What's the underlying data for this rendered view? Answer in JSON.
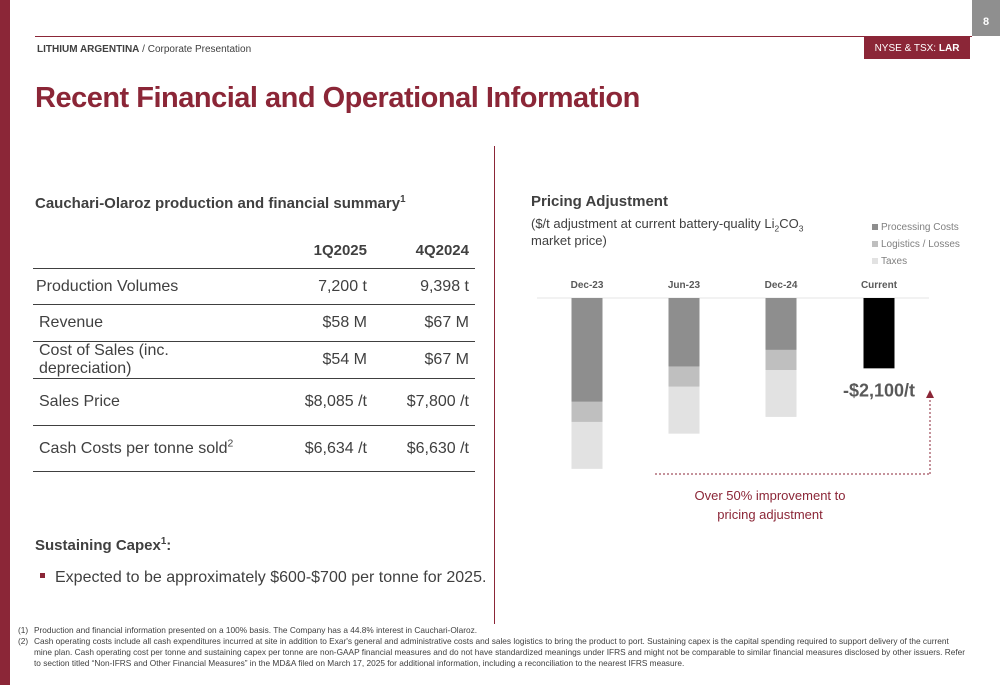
{
  "page_number": "8",
  "header": {
    "company": "LITHIUM ARGENTINA",
    "separator": " / ",
    "section": "Corporate Presentation",
    "ticker_prefix": "NYSE & TSX: ",
    "ticker": "LAR"
  },
  "title": "Recent Financial and Operational Information",
  "summary": {
    "title": "Cauchari-Olaroz production and financial summary",
    "title_sup": "1",
    "columns": [
      "1Q2025",
      "4Q2024"
    ],
    "rows": [
      {
        "label": "Production Volumes",
        "sup": "",
        "values": [
          "7,200 t",
          "9,398 t"
        ]
      },
      {
        "label": "Revenue",
        "sup": "",
        "values": [
          "$58 M",
          "$67 M"
        ]
      },
      {
        "label": "Cost of Sales (inc. depreciation)",
        "sup": "",
        "values": [
          "$54 M",
          "$67 M"
        ]
      },
      {
        "label": "Sales Price",
        "sup": "",
        "values": [
          "$8,085 /t",
          "$7,800 /t"
        ]
      },
      {
        "label": "Cash Costs per tonne sold",
        "sup": "2",
        "values": [
          "$6,634 /t",
          "$6,630 /t"
        ]
      }
    ]
  },
  "capex": {
    "heading": "Sustaining Capex",
    "heading_sup": "1",
    "heading_suffix": ":",
    "bullet": "Expected to be approximately $600-$700 per tonne for 2025."
  },
  "chart": {
    "title": "Pricing Adjustment",
    "subtitle_pre": "($/t adjustment at current battery-quality Li",
    "subtitle_sub1": "2",
    "subtitle_mid": "CO",
    "subtitle_sub2": "3",
    "subtitle_post": " market price)",
    "current_label": "-$2,100/t",
    "annotation": "Over 50% improvement to pricing adjustment",
    "colors": {
      "processing": "#8e8e8e",
      "logistics": "#bfbfbf",
      "taxes": "#e2e2e2",
      "current": "#000000",
      "accent": "#8B2637"
    }
  },
  "chart_data": {
    "type": "bar",
    "stacked": true,
    "orientation": "downward",
    "categories": [
      "Dec-23",
      "Jun-23",
      "Dec-24",
      "Current"
    ],
    "series": [
      {
        "name": "Processing Costs",
        "values": [
          3100,
          2050,
          1550,
          0
        ]
      },
      {
        "name": "Logistics / Losses",
        "values": [
          600,
          600,
          600,
          0
        ]
      },
      {
        "name": "Taxes",
        "values": [
          1400,
          1400,
          1400,
          0
        ]
      },
      {
        "name": "Current",
        "values": [
          0,
          0,
          0,
          2100
        ]
      }
    ],
    "data_labels": [
      {
        "category": "Current",
        "text": "-$2,100/t"
      }
    ],
    "legend": "top-right",
    "grid": false
  },
  "footnotes": [
    {
      "n": "(1)",
      "text": "Production and financial information presented on a 100% basis. The Company has a 44.8% interest in Cauchari-Olaroz."
    },
    {
      "n": "(2)",
      "text": "Cash operating costs include all cash expenditures incurred at site in addition to Exar's general and administrative costs and sales logistics to bring the product to port. Sustaining capex is the capital spending required to support delivery of the current mine plan. Cash operating cost per tonne and sustaining capex per tonne are non-GAAP financial measures and do not have standardized meanings under IFRS and might not be comparable to similar financial measures disclosed by other issuers. Refer to section titled “Non-IFRS and Other Financial Measures” in the MD&A filed on March 17, 2025 for additional information, including a reconciliation to the nearest IFRS measure."
    }
  ]
}
